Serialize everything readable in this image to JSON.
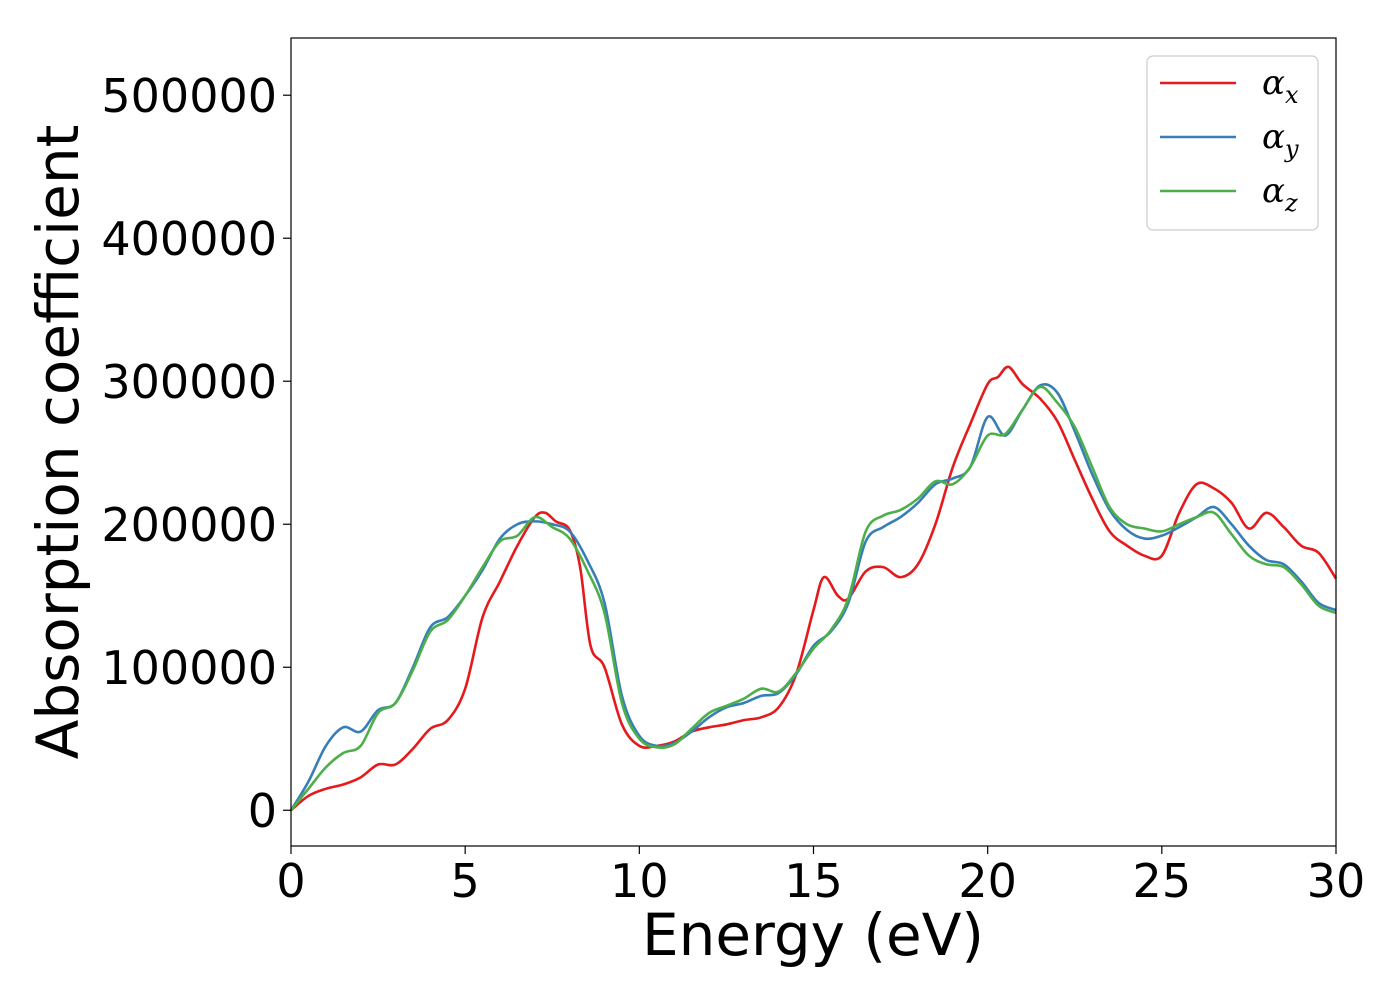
{
  "chart_data": {
    "type": "line",
    "title": "",
    "xlabel": "Energy (eV)",
    "ylabel": "Absorption coefficient",
    "xlim": [
      0,
      30
    ],
    "ylim": [
      -25000,
      540000
    ],
    "xticks": [
      0,
      5,
      10,
      15,
      20,
      25,
      30
    ],
    "xtick_labels": [
      "0",
      "5",
      "10",
      "15",
      "20",
      "25",
      "30"
    ],
    "yticks": [
      0,
      100000,
      200000,
      300000,
      400000,
      500000
    ],
    "ytick_labels": [
      "0",
      "100000",
      "200000",
      "300000",
      "400000",
      "500000"
    ],
    "grid": false,
    "legend_position": "top-right",
    "series": [
      {
        "name": "α",
        "subscript": "x",
        "color": "#e41a1c",
        "x": [
          0,
          0.5,
          1.0,
          1.5,
          2.0,
          2.5,
          3.0,
          3.5,
          4.0,
          4.5,
          5.0,
          5.5,
          6.0,
          6.5,
          7.0,
          7.3,
          7.6,
          8.0,
          8.3,
          8.6,
          9.0,
          9.5,
          10.0,
          10.5,
          11.0,
          11.5,
          12.0,
          12.5,
          13.0,
          13.5,
          14.0,
          14.5,
          15.0,
          15.3,
          15.7,
          16.0,
          16.5,
          17.0,
          17.5,
          18.0,
          18.5,
          19.0,
          19.5,
          20.0,
          20.3,
          20.6,
          21.0,
          21.5,
          22.0,
          22.5,
          23.0,
          23.5,
          24.0,
          24.5,
          25.0,
          25.5,
          26.0,
          26.5,
          27.0,
          27.5,
          28.0,
          28.5,
          29.0,
          29.5,
          30.0
        ],
        "values": [
          0,
          10000,
          15000,
          18000,
          23000,
          32000,
          32000,
          43000,
          57000,
          63000,
          85000,
          135000,
          160000,
          185000,
          205000,
          208000,
          202000,
          196000,
          170000,
          115000,
          100000,
          60000,
          45000,
          45000,
          48000,
          55000,
          58000,
          60000,
          63000,
          65000,
          72000,
          95000,
          140000,
          163000,
          150000,
          148000,
          167000,
          170000,
          163000,
          172000,
          200000,
          240000,
          270000,
          298000,
          303000,
          310000,
          298000,
          288000,
          272000,
          245000,
          218000,
          195000,
          185000,
          178000,
          178000,
          208000,
          228000,
          225000,
          215000,
          197000,
          208000,
          198000,
          185000,
          180000,
          162000
        ]
      },
      {
        "name": "α",
        "subscript": "y",
        "color": "#377eb8",
        "x": [
          0,
          0.5,
          1.0,
          1.5,
          2.0,
          2.5,
          3.0,
          3.5,
          4.0,
          4.5,
          5.0,
          5.5,
          6.0,
          6.5,
          7.0,
          7.5,
          8.0,
          8.5,
          9.0,
          9.5,
          10.0,
          10.5,
          11.0,
          11.5,
          12.0,
          12.5,
          13.0,
          13.5,
          14.0,
          14.5,
          15.0,
          15.5,
          16.0,
          16.5,
          17.0,
          17.5,
          18.0,
          18.5,
          19.0,
          19.5,
          20.0,
          20.5,
          21.0,
          21.5,
          22.0,
          22.5,
          23.0,
          23.5,
          24.0,
          24.5,
          25.0,
          25.5,
          26.0,
          26.5,
          27.0,
          27.5,
          28.0,
          28.5,
          29.0,
          29.5,
          30.0
        ],
        "values": [
          0,
          20000,
          45000,
          58000,
          55000,
          70000,
          75000,
          100000,
          128000,
          135000,
          150000,
          168000,
          190000,
          200000,
          202000,
          200000,
          195000,
          175000,
          145000,
          80000,
          52000,
          45000,
          47000,
          55000,
          65000,
          72000,
          75000,
          80000,
          82000,
          95000,
          115000,
          125000,
          145000,
          188000,
          198000,
          205000,
          215000,
          228000,
          232000,
          240000,
          275000,
          262000,
          280000,
          297000,
          292000,
          265000,
          235000,
          210000,
          196000,
          190000,
          192000,
          198000,
          205000,
          212000,
          200000,
          185000,
          175000,
          172000,
          160000,
          145000,
          140000
        ]
      },
      {
        "name": "α",
        "subscript": "z",
        "color": "#4daf4a",
        "x": [
          0,
          0.5,
          1.0,
          1.5,
          2.0,
          2.5,
          3.0,
          3.5,
          4.0,
          4.5,
          5.0,
          5.5,
          6.0,
          6.5,
          7.0,
          7.5,
          8.0,
          8.5,
          9.0,
          9.5,
          10.0,
          10.5,
          11.0,
          11.5,
          12.0,
          12.5,
          13.0,
          13.5,
          14.0,
          14.5,
          15.0,
          15.5,
          16.0,
          16.5,
          17.0,
          17.5,
          18.0,
          18.5,
          19.0,
          19.5,
          20.0,
          20.5,
          21.0,
          21.5,
          22.0,
          22.5,
          23.0,
          23.5,
          24.0,
          24.5,
          25.0,
          25.5,
          26.0,
          26.5,
          27.0,
          27.5,
          28.0,
          28.5,
          29.0,
          29.5,
          30.0
        ],
        "values": [
          0,
          15000,
          30000,
          40000,
          45000,
          68000,
          75000,
          98000,
          125000,
          133000,
          150000,
          170000,
          188000,
          192000,
          205000,
          198000,
          190000,
          168000,
          138000,
          75000,
          50000,
          44000,
          46000,
          57000,
          68000,
          73000,
          78000,
          85000,
          83000,
          96000,
          113000,
          126000,
          148000,
          195000,
          206000,
          210000,
          218000,
          230000,
          228000,
          240000,
          262000,
          263000,
          280000,
          296000,
          285000,
          268000,
          240000,
          212000,
          200000,
          197000,
          195000,
          200000,
          205000,
          208000,
          193000,
          178000,
          172000,
          170000,
          158000,
          143000,
          138000
        ]
      }
    ]
  }
}
